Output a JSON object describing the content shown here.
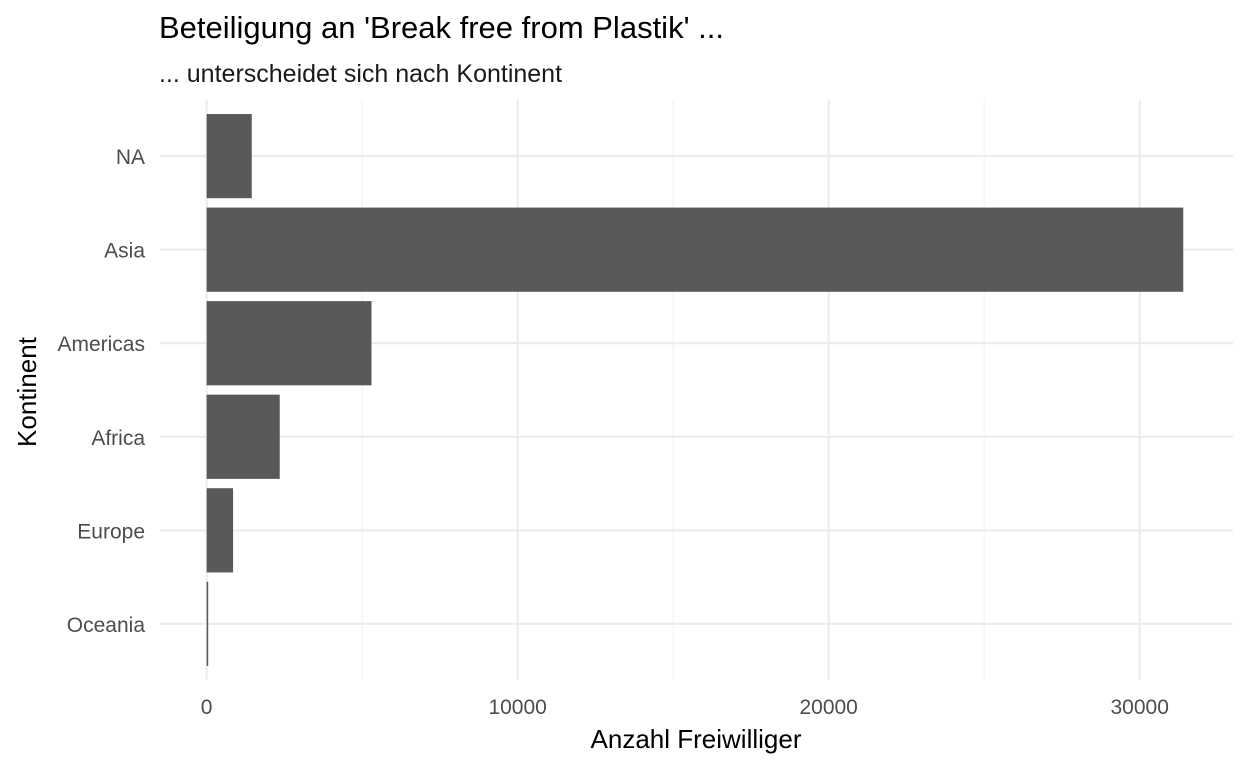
{
  "chart_data": {
    "type": "bar",
    "orientation": "horizontal",
    "title": "Beteiligung an 'Break free from Plastik' ...",
    "subtitle": "... unterscheidet sich nach Kontinent",
    "xlabel": "Anzahl Freiwilliger",
    "ylabel": "Kontinent",
    "categories": [
      "NA",
      "Asia",
      "Americas",
      "Africa",
      "Europe",
      "Oceania"
    ],
    "values": [
      1450,
      31400,
      5300,
      2350,
      850,
      50
    ],
    "xlim": [
      -1500,
      33000
    ],
    "x_ticks": [
      0,
      10000,
      20000,
      30000
    ],
    "x_tick_labels": [
      "0",
      "10000",
      "20000",
      "30000"
    ],
    "grid": true,
    "colors": {
      "bar": "#595959",
      "grid_major": "#ebebeb",
      "grid_minor": "#f4f4f4"
    }
  }
}
